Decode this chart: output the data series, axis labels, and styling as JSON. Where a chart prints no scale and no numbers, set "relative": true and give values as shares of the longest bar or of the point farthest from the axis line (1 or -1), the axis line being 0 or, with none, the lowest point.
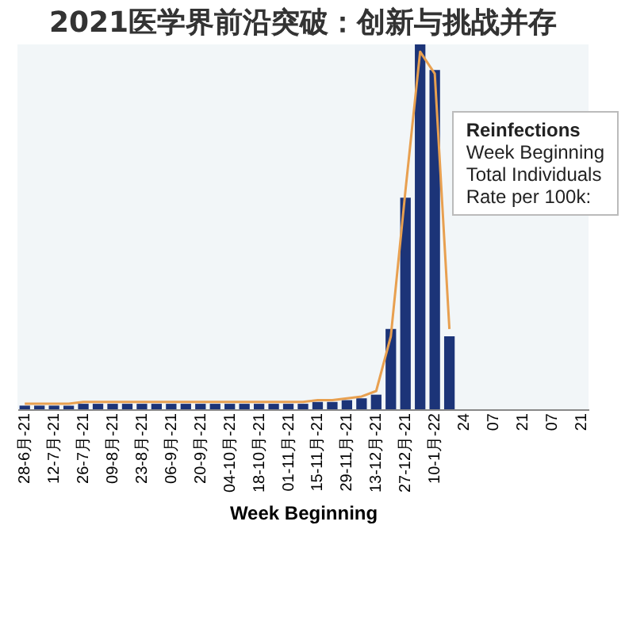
{
  "chart_data": {
    "type": "bar",
    "relative": true,
    "title": "2021医学界前沿突破：创新与挑战并存",
    "xlabel": "Week Beginning",
    "annotations": [
      "Reinfections",
      "Week Beginning",
      "Total Individuals",
      "Rate per 100k:"
    ],
    "categories": [
      "28-6月-21",
      null,
      "12-7月-21",
      null,
      "26-7月-21",
      null,
      "09-8月-21",
      null,
      "23-8月-21",
      null,
      "06-9月-21",
      null,
      "20-9月-21",
      null,
      "04-10月-21",
      null,
      "18-10月-21",
      null,
      "01-11月-21",
      null,
      "15-11月-21",
      null,
      "29-11月-21",
      null,
      "13-12月-21",
      null,
      "27-12月-21",
      null,
      "10-1月-22",
      null,
      "24",
      null,
      "07",
      null,
      "21",
      null,
      "07",
      null,
      "21"
    ],
    "series": [
      {
        "color": "#1c3478",
        "values": [
          0.01,
          0.01,
          0.01,
          0.01,
          0.015,
          0.015,
          0.015,
          0.015,
          0.015,
          0.015,
          0.015,
          0.015,
          0.015,
          0.015,
          0.015,
          0.015,
          0.015,
          0.015,
          0.015,
          0.015,
          0.02,
          0.02,
          0.025,
          0.03,
          0.04,
          0.22,
          0.58,
          1,
          0.93,
          0.2,
          null,
          null,
          null,
          null,
          null,
          null,
          null,
          null,
          null
        ]
      },
      {
        "type": "line",
        "color": "#e8a050",
        "values": [
          0.015,
          0.015,
          0.015,
          0.015,
          0.02,
          0.02,
          0.02,
          0.02,
          0.02,
          0.02,
          0.02,
          0.02,
          0.02,
          0.02,
          0.02,
          0.02,
          0.02,
          0.02,
          0.02,
          0.02,
          0.025,
          0.025,
          0.03,
          0.035,
          0.05,
          0.2,
          0.6,
          0.98,
          0.92,
          0.22,
          null,
          null,
          null,
          null,
          null,
          null,
          null,
          null,
          null
        ]
      }
    ]
  }
}
